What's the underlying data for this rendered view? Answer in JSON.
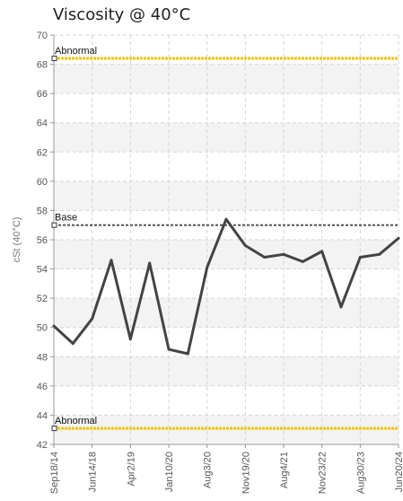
{
  "chart_data": {
    "type": "line",
    "title": "Viscosity @ 40°C",
    "ylabel": "cSt (40°C)",
    "xlabel": "",
    "ylim": [
      42,
      70
    ],
    "yticks": [
      42,
      44,
      46,
      48,
      50,
      52,
      54,
      56,
      58,
      60,
      62,
      64,
      66,
      68,
      70
    ],
    "grid": true,
    "x_tick_labels": [
      "Sep18/14",
      "Jun14/18",
      "Apr2/19",
      "Jan10/20",
      "Aug3/20",
      "Nov19/20",
      "Aug4/21",
      "Nov23/22",
      "Aug30/23",
      "Jun20/24"
    ],
    "x_tick_index": [
      0,
      2,
      4,
      6,
      8,
      10,
      12,
      14,
      16,
      18
    ],
    "series": [
      {
        "color": "#444444",
        "values": [
          50.1,
          48.9,
          50.6,
          54.6,
          49.2,
          54.4,
          48.5,
          48.2,
          54.1,
          57.4,
          55.6,
          54.8,
          55.0,
          54.5,
          55.2,
          51.4,
          54.8,
          55.0,
          56.1
        ]
      }
    ],
    "reference_lines": [
      {
        "label": "Abnormal",
        "value": 68.4,
        "color": "#f2c200",
        "style": "dotted"
      },
      {
        "label": "Base",
        "value": 57.0,
        "color": "#555555",
        "style": "dotted"
      },
      {
        "label": "Abnormal",
        "value": 43.1,
        "color": "#f2c200",
        "style": "dotted"
      }
    ]
  }
}
